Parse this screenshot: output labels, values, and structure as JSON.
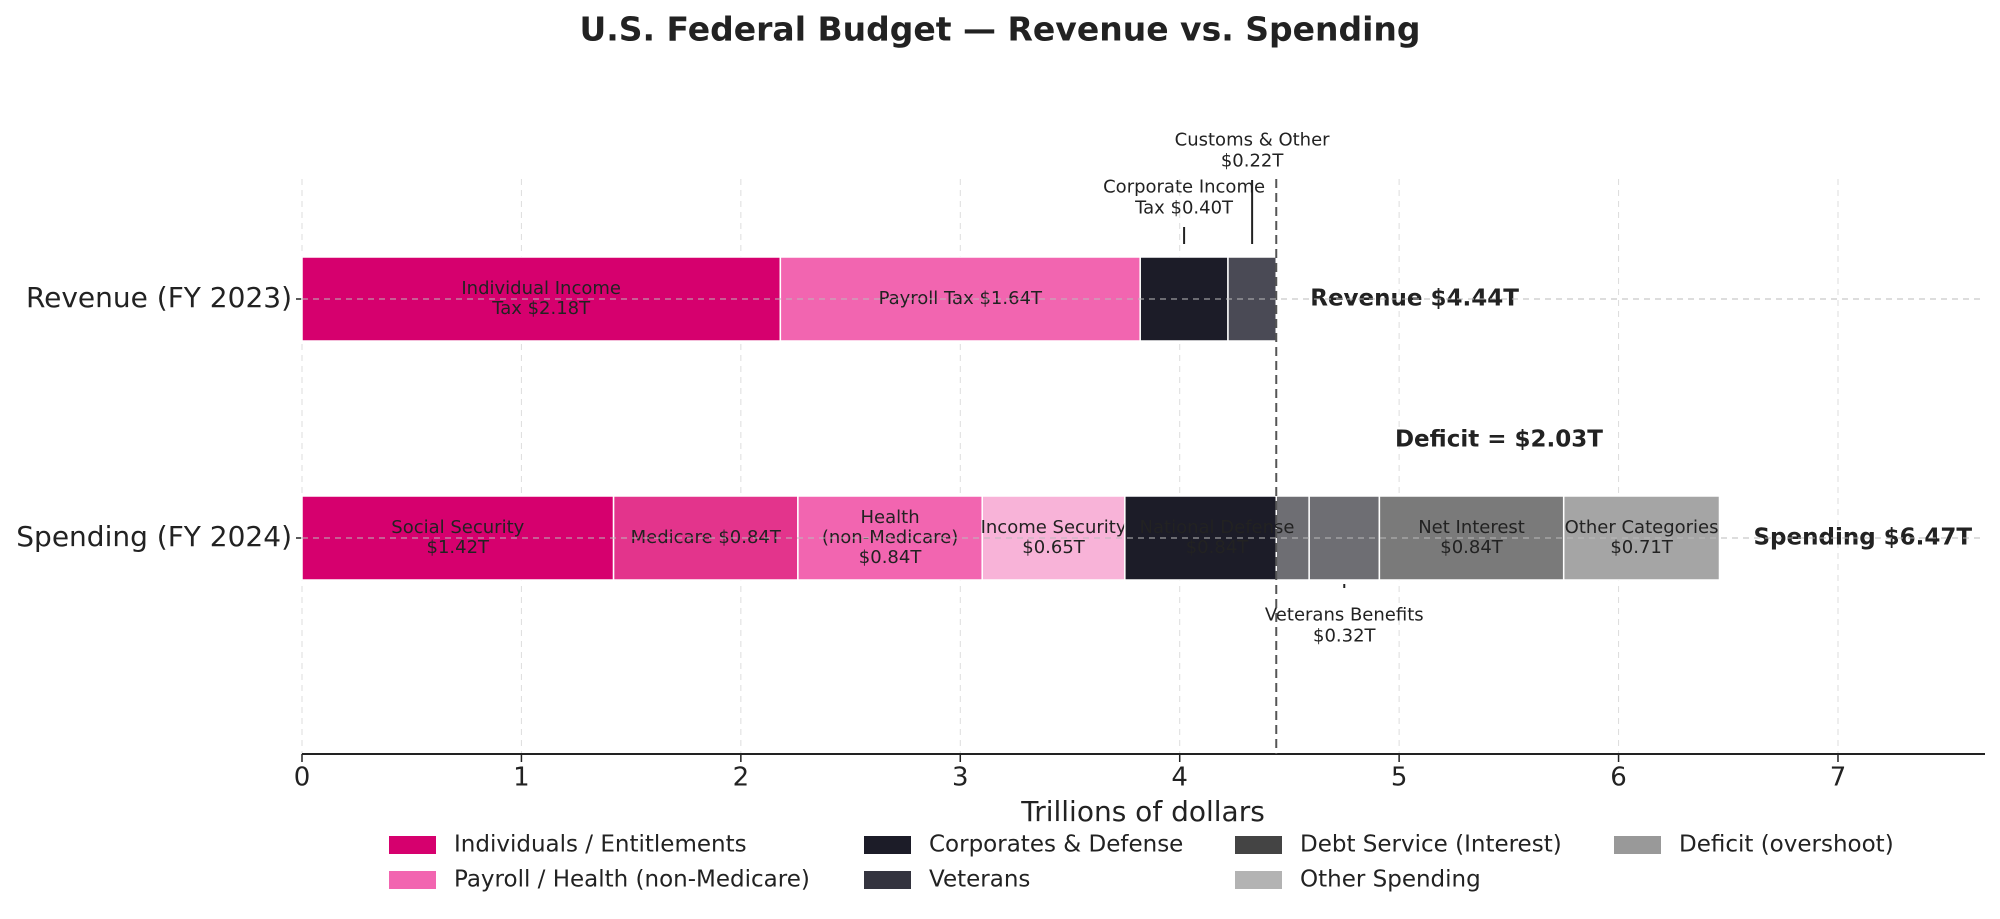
{
  "chart_data": {
    "type": "stacked-barh",
    "title": "U.S. Federal Budget — Revenue vs. Spending",
    "xlabel": "Trillions of dollars",
    "categories": [
      "Revenue (FY 2023)",
      "Spending (FY 2024)"
    ],
    "bars": [
      {
        "values": [
          2.18,
          1.64,
          0.4,
          0.22
        ],
        "value_labels": [
          "Individual Income\nTax $2.18T",
          "Payroll Tax $1.64T",
          "Corporate Income\nTax $0.40T",
          "Customs & Other\n$0.22T"
        ],
        "colors": [
          "#d6006e",
          "#f265b0",
          "#1c1c28",
          "#4a4a55"
        ]
      },
      {
        "values": [
          1.42,
          0.84,
          0.84,
          0.65,
          0.84,
          0.32,
          0.84,
          0.71
        ],
        "value_labels": [
          "Social Security\n$1.42T",
          "Medicare $0.84T",
          "Health\n(non-Medicare)\n$0.84T",
          "Income Security\n$0.65T",
          "National Defense\n$0.84T",
          "Veterans Benefits\n$0.32T",
          "Net Interest\n$0.84T",
          "Other Categories\n$0.71T"
        ],
        "colors": [
          "#d6006e",
          "#e3348c",
          "#f265b0",
          "#f8b3d8",
          "#1c1c28",
          "#6e6e73",
          "#7a7a7a",
          "#a5a5a5"
        ]
      }
    ],
    "overshoot_color": "#6e6e73",
    "totals": [
      4.44,
      6.47
    ],
    "total_labels": [
      "Revenue $4.44T",
      "Spending $6.47T"
    ],
    "deficit": 2.03,
    "deficit_label": "Deficit = $2.03T",
    "xlim": [
      0,
      7.67
    ],
    "xticks": [
      0,
      1,
      2,
      3,
      4,
      5,
      6,
      7
    ],
    "grid": true,
    "legend": [
      {
        "name": "Individuals / Entitlements",
        "color": "#d6006e"
      },
      {
        "name": "Payroll / Health (non-Medicare)",
        "color": "#f265b0"
      },
      {
        "name": "Corporates & Defense",
        "color": "#1c1c28"
      },
      {
        "name": "Veterans",
        "color": "#34343f"
      },
      {
        "name": "Debt Service (Interest)",
        "color": "#444444"
      },
      {
        "name": "Other Spending",
        "color": "#b3b3b3"
      },
      {
        "name": "Deficit (overshoot)",
        "color": "#999999"
      }
    ]
  }
}
